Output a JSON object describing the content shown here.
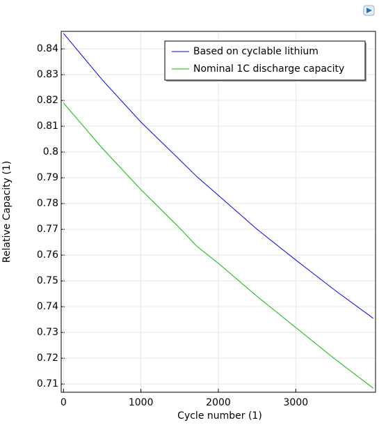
{
  "chart_data": {
    "type": "line",
    "x_label": "Cycle number (1)",
    "y_label": "Relative Capacity (1)",
    "x": [
      0,
      500,
      1000,
      1500,
      1720,
      2000,
      2500,
      3000,
      3500,
      4000
    ],
    "series": [
      {
        "name": "Based on cyclable lithium",
        "color": "#0000ff",
        "values": [
          0.846,
          0.828,
          0.8116,
          0.797,
          0.7905,
          0.7832,
          0.77,
          0.7581,
          0.7465,
          0.7355
        ]
      },
      {
        "name": "Nominal 1C discharge capacity",
        "color": "#00bb00",
        "values": [
          0.819,
          0.8015,
          0.7854,
          0.7705,
          0.7635,
          0.7568,
          0.744,
          0.7319,
          0.7198,
          0.7084
        ]
      }
    ],
    "xlim": [
      -30,
      4030
    ],
    "ylim": [
      0.7068,
      0.8468
    ],
    "xticks": [
      0,
      1000,
      2000,
      3000
    ],
    "yticks": [
      0.71,
      0.72,
      0.73,
      0.74,
      0.75,
      0.76,
      0.77,
      0.78,
      0.79,
      0.8,
      0.81,
      0.82,
      0.83,
      0.84
    ],
    "grid": true,
    "legend": "upper-right"
  }
}
